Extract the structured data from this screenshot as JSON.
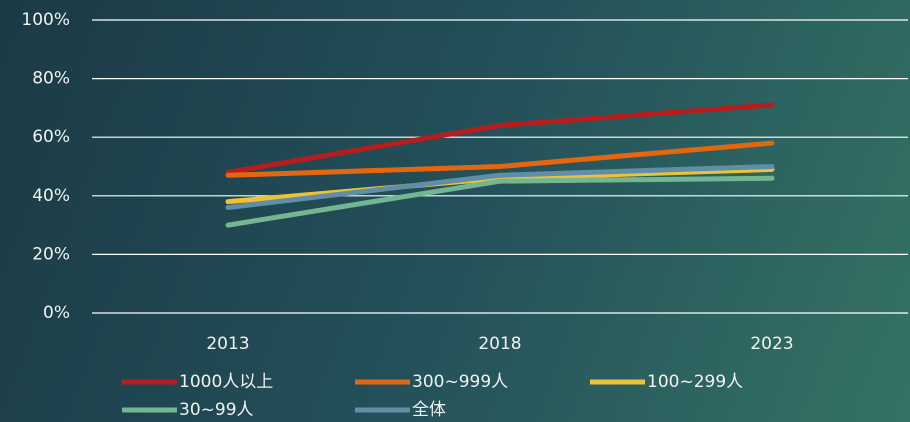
{
  "chart_data": {
    "type": "line",
    "categories": [
      "2013",
      "2018",
      "2023"
    ],
    "series": [
      {
        "name": "1000人以上",
        "color": "#b81d1d",
        "values": [
          48,
          64,
          71
        ]
      },
      {
        "name": "300~999人",
        "color": "#e3670f",
        "values": [
          47,
          50,
          58
        ]
      },
      {
        "name": "100~299人",
        "color": "#eec235",
        "values": [
          38,
          46,
          49
        ]
      },
      {
        "name": "30~99人",
        "color": "#72b792",
        "values": [
          30,
          45,
          46
        ]
      },
      {
        "name": "全体",
        "color": "#5f8ea6",
        "values": [
          36,
          47,
          50
        ]
      }
    ],
    "ylim": [
      0,
      100
    ],
    "yticks": [
      {
        "value": 0,
        "label": "0%"
      },
      {
        "value": 20,
        "label": "20%"
      },
      {
        "value": 40,
        "label": "40%"
      },
      {
        "value": 60,
        "label": "60%"
      },
      {
        "value": 80,
        "label": "80%"
      },
      {
        "value": 100,
        "label": "100%"
      }
    ],
    "grid": true,
    "legend": "bottom"
  }
}
